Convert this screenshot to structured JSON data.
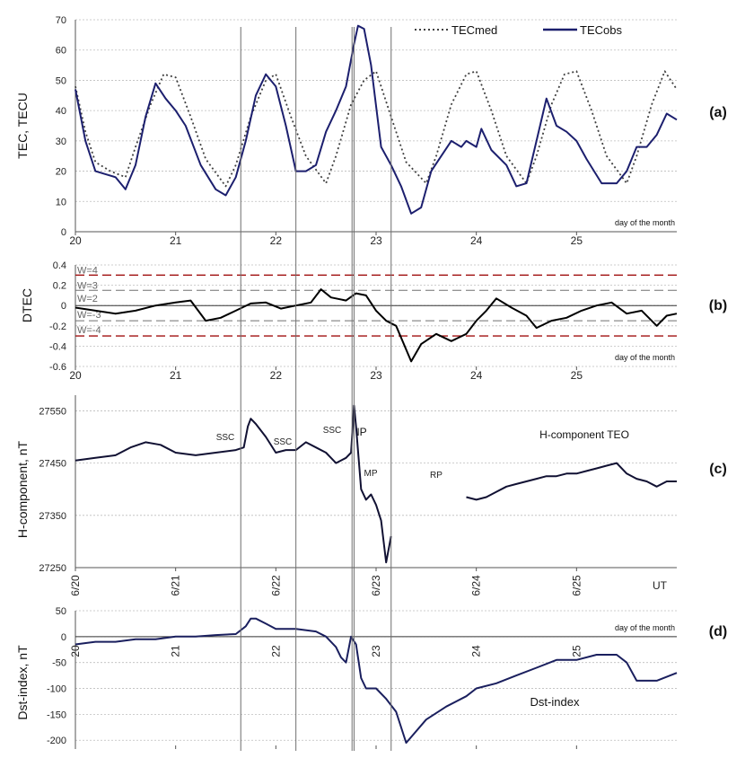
{
  "chart_data": [
    {
      "panel_label": "(a)",
      "type": "line",
      "ylabel": "TEC, TECU",
      "ylim": [
        0,
        70
      ],
      "yticks": [
        "0",
        "10",
        "20",
        "30",
        "40",
        "50",
        "60",
        "70"
      ],
      "xlim": [
        20,
        26
      ],
      "xticks": [
        "20",
        "21",
        "22",
        "23",
        "24",
        "25"
      ],
      "xnote": "day of the month",
      "grid": true,
      "legend_position": "top-right",
      "series": [
        {
          "name": "TECmed",
          "style": "dotted",
          "color": "#404040",
          "x": [
            20.0,
            20.1,
            20.2,
            20.35,
            20.5,
            20.6,
            20.75,
            20.88,
            21.0,
            21.15,
            21.3,
            21.5,
            21.6,
            21.75,
            21.9,
            22.0,
            22.15,
            22.3,
            22.5,
            22.6,
            22.75,
            22.88,
            23.0,
            23.15,
            23.3,
            23.5,
            23.6,
            23.75,
            23.9,
            24.0,
            24.15,
            24.3,
            24.5,
            24.6,
            24.75,
            24.88,
            25.0,
            25.15,
            25.3,
            25.5,
            25.6,
            25.75,
            25.88,
            26.0
          ],
          "y": [
            48,
            33,
            23,
            20,
            18,
            28,
            42,
            52,
            51,
            38,
            24,
            15,
            22,
            38,
            50,
            52,
            38,
            25,
            16,
            25,
            42,
            50,
            53,
            38,
            23,
            16,
            25,
            42,
            52,
            53,
            40,
            25,
            16,
            25,
            42,
            52,
            53,
            40,
            25,
            16,
            25,
            42,
            53,
            47
          ]
        },
        {
          "name": "TECobs",
          "style": "solid",
          "color": "#1c1f6e",
          "x": [
            20.0,
            20.1,
            20.2,
            20.3,
            20.4,
            20.5,
            20.6,
            20.7,
            20.8,
            20.9,
            21.0,
            21.1,
            21.25,
            21.4,
            21.5,
            21.6,
            21.7,
            21.8,
            21.9,
            22.0,
            22.1,
            22.2,
            22.3,
            22.4,
            22.5,
            22.6,
            22.7,
            22.78,
            22.82,
            22.88,
            22.95,
            23.05,
            23.15,
            23.25,
            23.35,
            23.45,
            23.55,
            23.65,
            23.75,
            23.85,
            23.9,
            24.0,
            24.05,
            24.15,
            24.3,
            24.4,
            24.5,
            24.6,
            24.7,
            24.8,
            24.9,
            25.0,
            25.1,
            25.25,
            25.4,
            25.5,
            25.6,
            25.7,
            25.8,
            25.9,
            26.0
          ],
          "y": [
            47,
            30,
            20,
            19,
            18,
            14,
            22,
            38,
            49,
            44,
            40,
            35,
            22,
            14,
            12,
            18,
            30,
            45,
            52,
            48,
            35,
            20,
            20,
            22,
            33,
            40,
            48,
            62,
            68,
            67,
            55,
            28,
            22,
            15,
            6,
            8,
            20,
            25,
            30,
            28,
            30,
            28,
            34,
            27,
            22,
            15,
            16,
            30,
            44,
            35,
            33,
            30,
            24,
            16,
            16,
            20,
            28,
            28,
            32,
            39,
            37
          ]
        }
      ]
    },
    {
      "panel_label": "(b)",
      "type": "line",
      "ylabel": "DTEC",
      "ylim": [
        -0.6,
        0.4
      ],
      "yticks": [
        "0.4",
        "0.2",
        "0",
        "-0.2",
        "-0.4",
        "-0.6"
      ],
      "xlim": [
        20,
        26
      ],
      "xticks": [
        "20",
        "21",
        "22",
        "23",
        "24",
        "25"
      ],
      "xnote": "day of the month",
      "thresholds": [
        {
          "label": "W=4",
          "value": 0.3,
          "color": "#a01010"
        },
        {
          "label": "W=3",
          "value": 0.15,
          "color": "#707070"
        },
        {
          "label": "W=2",
          "value": 0.0,
          "color": "#707070"
        },
        {
          "label": "W=-3",
          "value": -0.15,
          "color": "#707070"
        },
        {
          "label": "W=-4",
          "value": -0.3,
          "color": "#a01010"
        }
      ],
      "series": [
        {
          "name": "DTEC",
          "color": "#000000",
          "x": [
            20.0,
            20.2,
            20.4,
            20.6,
            20.8,
            21.0,
            21.15,
            21.3,
            21.45,
            21.6,
            21.75,
            21.9,
            22.05,
            22.2,
            22.35,
            22.45,
            22.55,
            22.7,
            22.8,
            22.9,
            23.0,
            23.1,
            23.2,
            23.35,
            23.45,
            23.6,
            23.75,
            23.9,
            24.0,
            24.1,
            24.2,
            24.35,
            24.5,
            24.6,
            24.75,
            24.9,
            25.05,
            25.2,
            25.35,
            25.5,
            25.65,
            25.8,
            25.9,
            26.0
          ],
          "y": [
            -0.02,
            -0.05,
            -0.08,
            -0.05,
            0.0,
            0.03,
            0.05,
            -0.15,
            -0.12,
            -0.05,
            0.02,
            0.03,
            -0.03,
            0.0,
            0.03,
            0.16,
            0.08,
            0.05,
            0.12,
            0.1,
            -0.05,
            -0.15,
            -0.2,
            -0.55,
            -0.38,
            -0.28,
            -0.35,
            -0.28,
            -0.15,
            -0.05,
            0.07,
            -0.02,
            -0.1,
            -0.22,
            -0.15,
            -0.12,
            -0.05,
            0.0,
            0.03,
            -0.08,
            -0.05,
            -0.2,
            -0.1,
            -0.08
          ]
        }
      ]
    },
    {
      "panel_label": "(c)",
      "type": "line",
      "ylabel": "H-component, nT",
      "ylim": [
        27250,
        27580
      ],
      "yticks": [
        "27550",
        "27450",
        "27350",
        "27250"
      ],
      "xlim": [
        20,
        26
      ],
      "xticks": [
        "6/20",
        "6/21",
        "6/22",
        "6/23",
        "6/24",
        "6/25"
      ],
      "xnote": "UT",
      "annotations": [
        "SSC",
        "SSC",
        "SSC",
        "IP",
        "MP",
        "RP",
        "H-component TEO"
      ],
      "series": [
        {
          "name": "H-component TEO",
          "color": "#111133",
          "segments": [
            {
              "x": [
                20.0,
                20.2,
                20.4,
                20.55,
                20.7,
                20.85,
                21.0,
                21.2,
                21.4,
                21.6,
                21.68,
                21.72,
                21.75,
                21.8,
                21.9,
                22.0,
                22.1,
                22.2,
                22.3,
                22.4,
                22.5,
                22.6,
                22.7,
                22.75,
                22.76,
                22.78,
                22.8,
                22.85,
                22.9,
                22.95,
                23.0,
                23.05,
                23.1,
                23.15
              ],
              "y": [
                27455,
                27460,
                27465,
                27480,
                27490,
                27485,
                27470,
                27465,
                27470,
                27475,
                27480,
                27520,
                27535,
                27525,
                27500,
                27470,
                27475,
                27475,
                27490,
                27480,
                27470,
                27450,
                27460,
                27470,
                27500,
                27560,
                27520,
                27400,
                27380,
                27390,
                27370,
                27340,
                27260,
                27310
              ]
            },
            {
              "x": [
                23.9,
                24.0,
                24.1,
                24.2,
                24.3,
                24.4,
                24.5,
                24.6,
                24.7,
                24.8,
                24.9,
                25.0,
                25.1,
                25.2,
                25.3,
                25.4,
                25.5,
                25.6,
                25.7,
                25.8,
                25.9,
                26.0
              ],
              "y": [
                27385,
                27380,
                27385,
                27395,
                27405,
                27410,
                27415,
                27420,
                27425,
                27425,
                27430,
                27430,
                27435,
                27440,
                27445,
                27450,
                27430,
                27420,
                27415,
                27405,
                27415,
                27415
              ]
            }
          ]
        }
      ]
    },
    {
      "panel_label": "(d)",
      "type": "line",
      "ylabel": "Dst-index, nT",
      "ylim": [
        -210,
        50
      ],
      "yticks": [
        "50",
        "0",
        "-50",
        "-100",
        "-150",
        "-200"
      ],
      "xlim": [
        20,
        26
      ],
      "xticks": [
        "20",
        "21",
        "22",
        "23",
        "24",
        "25"
      ],
      "xnote": "day of the month",
      "annotations": [
        "Dst-index"
      ],
      "series": [
        {
          "name": "Dst-index",
          "color": "#1a1f5e",
          "x": [
            20.0,
            20.2,
            20.4,
            20.6,
            20.8,
            21.0,
            21.2,
            21.4,
            21.6,
            21.7,
            21.75,
            21.8,
            21.9,
            22.0,
            22.2,
            22.4,
            22.5,
            22.6,
            22.65,
            22.7,
            22.75,
            22.8,
            22.85,
            22.9,
            23.0,
            23.1,
            23.2,
            23.3,
            23.5,
            23.7,
            23.9,
            24.0,
            24.2,
            24.4,
            24.6,
            24.8,
            25.0,
            25.2,
            25.4,
            25.5,
            25.6,
            25.8,
            26.0
          ],
          "y": [
            -15,
            -10,
            -10,
            -5,
            -5,
            0,
            0,
            3,
            5,
            20,
            35,
            35,
            25,
            15,
            15,
            10,
            0,
            -20,
            -40,
            -50,
            0,
            -15,
            -80,
            -100,
            -100,
            -120,
            -145,
            -205,
            -160,
            -135,
            -115,
            -100,
            -90,
            -75,
            -60,
            -45,
            -45,
            -35,
            -35,
            -50,
            -85,
            -85,
            -70
          ]
        }
      ]
    },
    {
      "type": "event_markers",
      "x": [
        21.65,
        22.2,
        22.76,
        22.78,
        23.15
      ]
    },
    {
      "type": "legend",
      "entries": [
        {
          "label": "TECmed",
          "style": "dotted"
        },
        {
          "label": "TECobs",
          "style": "solid"
        }
      ]
    }
  ]
}
